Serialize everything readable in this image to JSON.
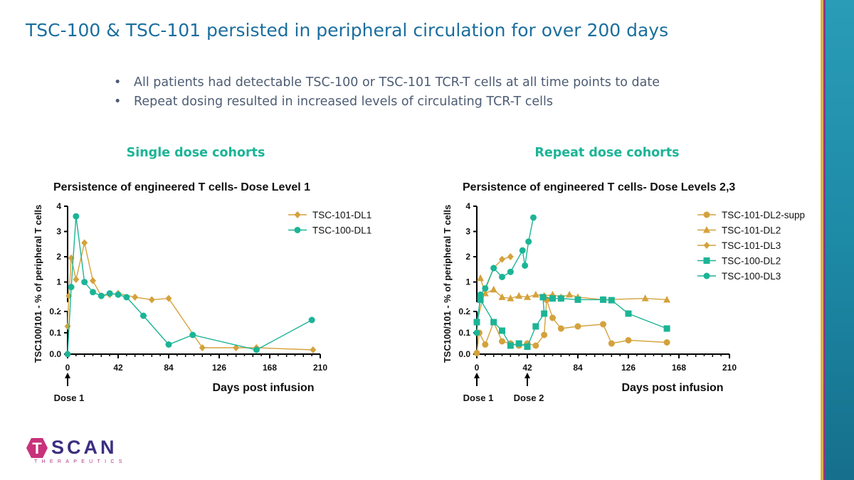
{
  "page": {
    "title": "TSC-100 & TSC-101 persisted in peripheral circulation for over 200 days",
    "bullets": [
      "All patients had detectable TSC-100 or TSC-101 TCR-T cells at all time points to date",
      "Repeat dosing resulted in increased levels of circulating TCR-T cells"
    ],
    "left_heading": "Single dose cohorts",
    "right_heading": "Repeat dose cohorts",
    "logo": {
      "letter_t": "T",
      "word_rest": "SCAN",
      "tagline": "THERAPEUTICS"
    },
    "colors": {
      "title": "#1b6e9e",
      "heading": "#1cb496",
      "text": "#4d5c73",
      "logo_hex": "#c8327a",
      "logo_word": "#3a2f80",
      "stripe_teal": "#1d8aa6",
      "stripe_gold": "#d7b34a",
      "stripe_purple": "#8a3a8c"
    }
  },
  "chart_data": [
    {
      "type": "line",
      "title": "Persistence of engineered T cells- Dose Level 1",
      "xlabel": "Days post infusion",
      "ylabel": "TSC100/101 - % of peripheral T cells",
      "xlim": [
        0,
        210
      ],
      "xticks": [
        "0",
        "42",
        "84",
        "126",
        "168",
        "210"
      ],
      "broken_y_axis": true,
      "ylim_lower": [
        0,
        0.2
      ],
      "ylim_upper": [
        0.2,
        4
      ],
      "yticks_lower": [
        "0.0",
        "0.1",
        "0.2"
      ],
      "yticks_upper": [
        "1",
        "2",
        "3",
        "4"
      ],
      "grid": false,
      "legend_position": "top-right",
      "annotations": [
        {
          "x": 0,
          "label": "Dose 1"
        }
      ],
      "series": [
        {
          "name": "TSC-101-DL1",
          "color": "#d4a23c",
          "marker": "diamond",
          "points": [
            [
              0,
              0.13
            ],
            [
              1,
              0.45
            ],
            [
              3,
              1.95
            ],
            [
              7,
              1.1
            ],
            [
              14,
              2.55
            ],
            [
              21,
              1.05
            ],
            [
              28,
              0.45
            ],
            [
              35,
              0.5
            ],
            [
              42,
              0.55
            ],
            [
              56,
              0.4
            ],
            [
              70,
              0.3
            ],
            [
              84,
              0.35
            ],
            [
              112,
              0.03
            ],
            [
              140,
              0.03
            ],
            [
              157,
              0.03
            ],
            [
              204,
              0.02
            ]
          ]
        },
        {
          "name": "TSC-100-DL1",
          "color": "#1cb496",
          "marker": "circle",
          "points": [
            [
              0,
              0.0
            ],
            [
              3,
              0.8
            ],
            [
              7,
              3.6
            ],
            [
              14,
              1.0
            ],
            [
              21,
              0.6
            ],
            [
              28,
              0.45
            ],
            [
              35,
              0.55
            ],
            [
              42,
              0.5
            ],
            [
              49,
              0.4
            ],
            [
              63,
              0.18
            ],
            [
              84,
              0.045
            ],
            [
              104,
              0.09
            ],
            [
              157,
              0.02
            ],
            [
              203,
              0.16
            ]
          ]
        }
      ]
    },
    {
      "type": "line",
      "title": "Persistence of engineered T cells- Dose Levels 2,3",
      "xlabel": "Days post infusion",
      "ylabel": "TSC100/101 - % of peripheral T cells",
      "xlim": [
        0,
        210
      ],
      "xticks": [
        "0",
        "42",
        "84",
        "126",
        "168",
        "210"
      ],
      "broken_y_axis": true,
      "ylim_lower": [
        0,
        0.2
      ],
      "ylim_upper": [
        0.2,
        4
      ],
      "yticks_lower": [
        "0.0",
        "0.1",
        "0.2"
      ],
      "yticks_upper": [
        "1",
        "2",
        "3",
        "4"
      ],
      "grid": false,
      "legend_position": "top-right",
      "annotations": [
        {
          "x": 0,
          "label": "Dose 1"
        },
        {
          "x": 42,
          "label": "Dose 2"
        }
      ],
      "series": [
        {
          "name": "TSC-101-DL2-supp",
          "color": "#d4a23c",
          "marker": "circle",
          "points": [
            [
              0,
              0.005
            ],
            [
              2,
              0.1
            ],
            [
              7,
              0.045
            ],
            [
              14,
              0.15
            ],
            [
              21,
              0.06
            ],
            [
              28,
              0.05
            ],
            [
              35,
              0.04
            ],
            [
              42,
              0.05
            ],
            [
              49,
              0.04
            ],
            [
              56,
              0.09
            ],
            [
              58,
              0.3
            ],
            [
              63,
              0.17
            ],
            [
              70,
              0.12
            ],
            [
              84,
              0.13
            ],
            [
              105,
              0.14
            ],
            [
              112,
              0.05
            ],
            [
              126,
              0.065
            ],
            [
              158,
              0.055
            ]
          ]
        },
        {
          "name": "TSC-101-DL2",
          "color": "#d4a23c",
          "marker": "triangle",
          "points": [
            [
              3,
              1.15
            ],
            [
              7,
              0.55
            ],
            [
              14,
              0.7
            ],
            [
              21,
              0.4
            ],
            [
              28,
              0.35
            ],
            [
              35,
              0.45
            ],
            [
              42,
              0.4
            ],
            [
              49,
              0.5
            ],
            [
              56,
              0.45
            ],
            [
              63,
              0.5
            ],
            [
              70,
              0.4
            ],
            [
              77,
              0.5
            ],
            [
              84,
              0.4
            ],
            [
              105,
              0.3
            ],
            [
              140,
              0.35
            ],
            [
              158,
              0.3
            ]
          ]
        },
        {
          "name": "TSC-101-DL3",
          "color": "#d4a23c",
          "marker": "diamond",
          "points": [
            [
              0,
              0.15
            ],
            [
              7,
              0.7
            ],
            [
              14,
              1.55
            ],
            [
              21,
              1.9
            ],
            [
              28,
              2.0
            ]
          ]
        },
        {
          "name": "TSC-100-DL2",
          "color": "#1cb496",
          "marker": "square",
          "points": [
            [
              0,
              0.15
            ],
            [
              3,
              0.3
            ],
            [
              14,
              0.15
            ],
            [
              21,
              0.11
            ],
            [
              28,
              0.04
            ],
            [
              35,
              0.05
            ],
            [
              42,
              0.035
            ],
            [
              49,
              0.13
            ],
            [
              56,
              0.19
            ],
            [
              55,
              0.4
            ],
            [
              63,
              0.35
            ],
            [
              70,
              0.35
            ],
            [
              84,
              0.3
            ],
            [
              105,
              0.3
            ],
            [
              112,
              0.28
            ],
            [
              126,
              0.19
            ],
            [
              158,
              0.12
            ]
          ]
        },
        {
          "name": "TSC-100-DL3",
          "color": "#1cb496",
          "marker": "circle",
          "points": [
            [
              0,
              0.1
            ],
            [
              3,
              0.5
            ],
            [
              7,
              0.75
            ],
            [
              14,
              1.55
            ],
            [
              21,
              1.2
            ],
            [
              28,
              1.4
            ],
            [
              38,
              2.25
            ],
            [
              40,
              1.65
            ],
            [
              43,
              2.6
            ],
            [
              47,
              3.55
            ]
          ]
        }
      ]
    }
  ]
}
